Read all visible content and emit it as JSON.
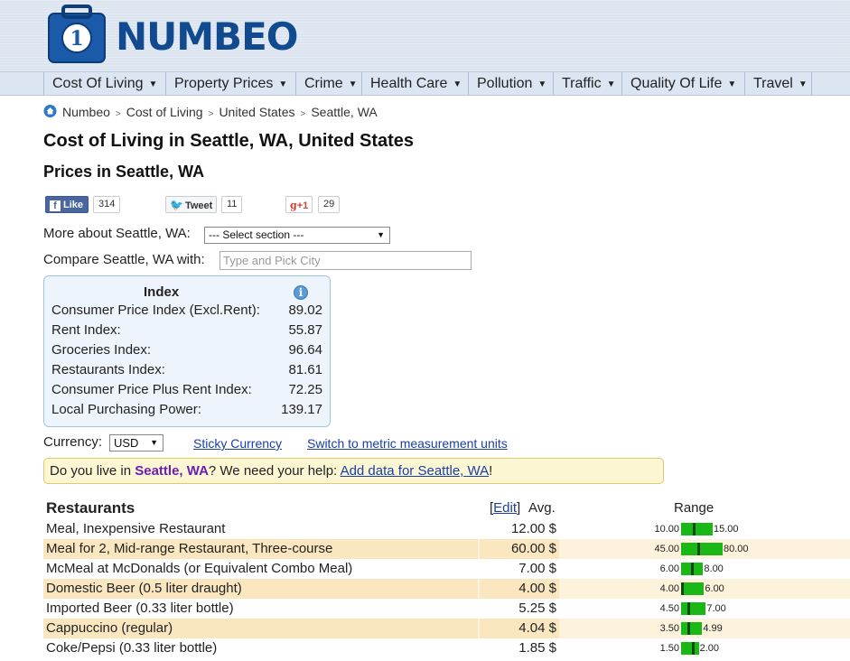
{
  "brand": {
    "name": "NUMBEO"
  },
  "nav": [
    {
      "label": "Cost Of Living"
    },
    {
      "label": "Property Prices"
    },
    {
      "label": "Crime"
    },
    {
      "label": "Health Care"
    },
    {
      "label": "Pollution"
    },
    {
      "label": "Traffic"
    },
    {
      "label": "Quality Of Life"
    },
    {
      "label": "Travel"
    }
  ],
  "breadcrumb": [
    "Numbeo",
    "Cost of Living",
    "United States",
    "Seattle, WA"
  ],
  "page_title": "Cost of Living in Seattle, WA, United States",
  "subtitle": "Prices in Seattle, WA",
  "social": {
    "like_label": "Like",
    "like_count": "314",
    "tweet_label": "Tweet",
    "tweet_count": "11",
    "gplus_label": "+1",
    "gplus_count": "29"
  },
  "more_about": {
    "label": "More about Seattle, WA:",
    "selected": "--- Select section ---"
  },
  "compare": {
    "label": "Compare Seattle, WA with:",
    "placeholder": "Type and Pick City"
  },
  "index": {
    "title": "Index",
    "rows": [
      {
        "label": "Consumer Price Index (Excl.Rent):",
        "value": "89.02"
      },
      {
        "label": "Rent Index:",
        "value": "55.87"
      },
      {
        "label": "Groceries Index:",
        "value": "96.64"
      },
      {
        "label": "Restaurants Index:",
        "value": "81.61"
      },
      {
        "label": "Consumer Price Plus Rent Index:",
        "value": "72.25"
      },
      {
        "label": "Local Purchasing Power:",
        "value": "139.17"
      }
    ]
  },
  "currency": {
    "label": "Currency:",
    "selected": "USD",
    "sticky_link": "Sticky Currency",
    "metric_link": "Switch to metric measurement units"
  },
  "help": {
    "prefix": "Do you live in ",
    "city": "Seattle, WA",
    "middle": "? We need your help: ",
    "link": "Add data for Seattle, WA",
    "suffix": "!"
  },
  "restaurants": {
    "heading": "Restaurants",
    "edit_label": "Edit",
    "avg_label": "Avg.",
    "range_label": "Range",
    "rows": [
      {
        "name": "Meal, Inexpensive Restaurant",
        "price": "12.00 $",
        "min": "10.00",
        "max": "15.00",
        "avg_fraction": 0.4
      },
      {
        "name": "Meal for 2, Mid-range Restaurant, Three-course",
        "price": "60.00 $",
        "min": "45.00",
        "max": "80.00",
        "avg_fraction": 0.43
      },
      {
        "name": "McMeal at McDonalds (or Equivalent Combo Meal)",
        "price": "7.00 $",
        "min": "6.00",
        "max": "8.00",
        "avg_fraction": 0.5
      },
      {
        "name": "Domestic Beer (0.5 liter draught)",
        "price": "4.00 $",
        "min": "4.00",
        "max": "6.00",
        "avg_fraction": 0.0
      },
      {
        "name": "Imported Beer (0.33 liter bottle)",
        "price": "5.25 $",
        "min": "4.50",
        "max": "7.00",
        "avg_fraction": 0.3
      },
      {
        "name": "Cappuccino (regular)",
        "price": "4.04 $",
        "min": "3.50",
        "max": "4.99",
        "avg_fraction": 0.36
      },
      {
        "name": "Coke/Pepsi (0.33 liter bottle)",
        "price": "1.85 $",
        "min": "1.50",
        "max": "2.00",
        "avg_fraction": 0.7
      }
    ]
  }
}
